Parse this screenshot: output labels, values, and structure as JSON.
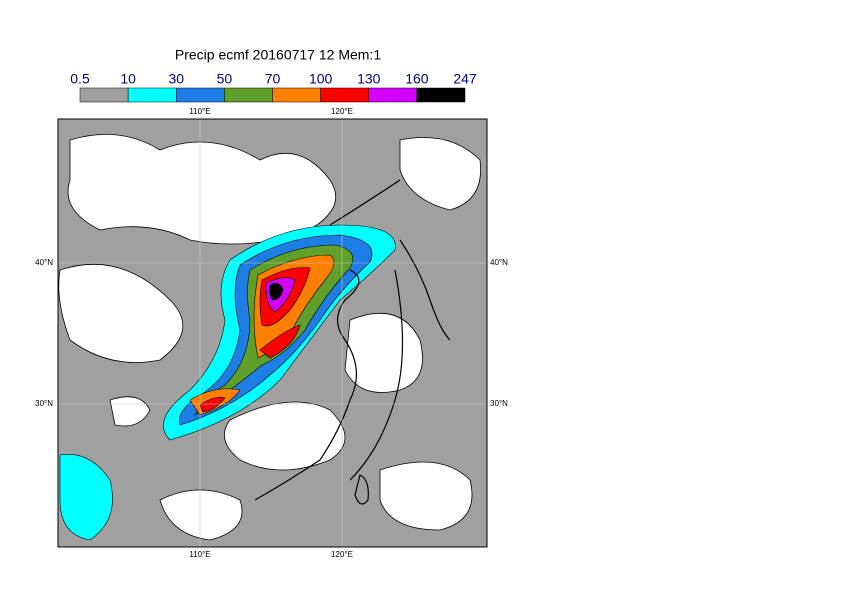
{
  "title": "Precip ecmf 20160717 12 Mem:1",
  "colorbar": {
    "bounds": [
      0.5,
      10,
      30,
      50,
      70,
      100,
      130,
      160,
      247
    ],
    "colors": [
      "#a0a0a0",
      "#00ffff",
      "#1e7ee6",
      "#5ea02a",
      "#ff8000",
      "#ff0000",
      "#d400ff",
      "#000000"
    ]
  },
  "map": {
    "lon_labels": [
      "110°E",
      "120°E"
    ],
    "lat_labels": [
      "40°N",
      "30°N"
    ]
  }
}
